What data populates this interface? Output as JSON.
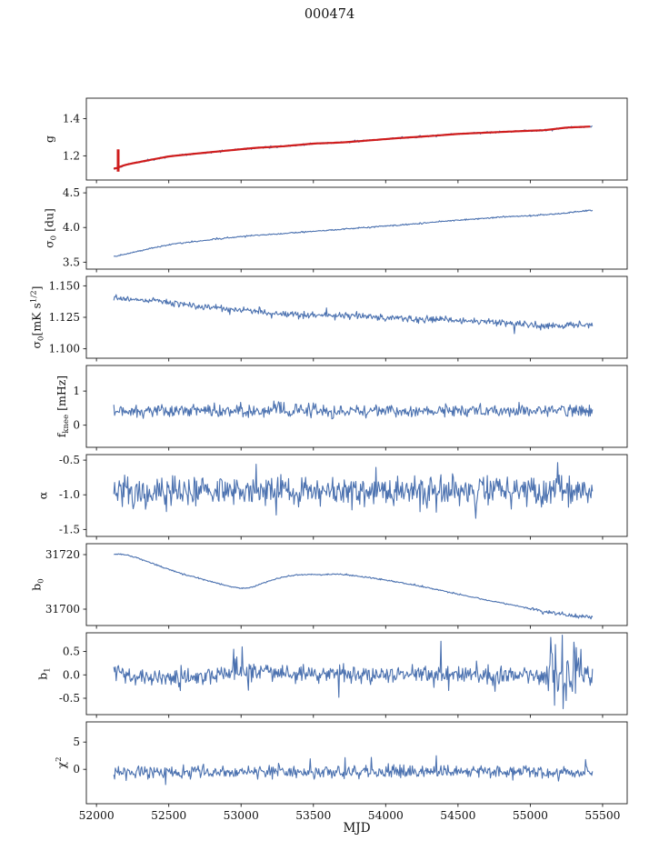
{
  "colors": {
    "line": "#4c72b0",
    "fit": "#cf1c1c",
    "axis": "#1a1a1a"
  },
  "chart_data": {
    "type": "line",
    "title": "000474",
    "xlabel": "MJD",
    "xlim": [
      51930,
      55670
    ],
    "xticks": [
      52000,
      52500,
      53000,
      53500,
      54000,
      54500,
      55000,
      55500
    ],
    "xtick_labels": [
      "52000",
      "52500",
      "53000",
      "53500",
      "54000",
      "54500",
      "55000",
      "55500"
    ],
    "x_data_range": [
      52120,
      55430
    ],
    "n_points": 620,
    "legend": "none",
    "grid": false,
    "panels": [
      {
        "id": "g",
        "ylabel": "g",
        "ylabel_parts": [
          [
            "g",
            "n"
          ]
        ],
        "ylim": [
          1.07,
          1.51
        ],
        "yticks": [
          1.2,
          1.4
        ],
        "ytick_labels": [
          "1.2",
          "1.4"
        ],
        "trend": [
          [
            52120,
            1.128
          ],
          [
            52200,
            1.152
          ],
          [
            52350,
            1.175
          ],
          [
            52500,
            1.197
          ],
          [
            52700,
            1.213
          ],
          [
            52900,
            1.228
          ],
          [
            53100,
            1.243
          ],
          [
            53300,
            1.252
          ],
          [
            53500,
            1.266
          ],
          [
            53700,
            1.272
          ],
          [
            53900,
            1.284
          ],
          [
            54100,
            1.296
          ],
          [
            54300,
            1.306
          ],
          [
            54500,
            1.318
          ],
          [
            54700,
            1.325
          ],
          [
            54900,
            1.332
          ],
          [
            55100,
            1.338
          ],
          [
            55250,
            1.352
          ],
          [
            55430,
            1.358
          ]
        ],
        "noise": 0.003,
        "seed": 11,
        "smooth": true,
        "fit": {
          "spike_x": 52150,
          "spike_y": [
            1.115,
            1.235
          ]
        }
      },
      {
        "id": "sigma0_du",
        "ylabel": "σ₀ [du]",
        "ylabel_parts": [
          [
            "σ",
            "n"
          ],
          [
            "0",
            "sub"
          ],
          [
            " [du]",
            "n"
          ]
        ],
        "ylim": [
          3.4,
          4.58
        ],
        "yticks": [
          3.5,
          4.0,
          4.5
        ],
        "ytick_labels": [
          "3.5",
          "4.0",
          "4.5"
        ],
        "trend": [
          [
            52120,
            3.58
          ],
          [
            52250,
            3.64
          ],
          [
            52400,
            3.71
          ],
          [
            52550,
            3.77
          ],
          [
            52700,
            3.8
          ],
          [
            52850,
            3.84
          ],
          [
            53000,
            3.87
          ],
          [
            53200,
            3.9
          ],
          [
            53400,
            3.93
          ],
          [
            53600,
            3.96
          ],
          [
            53800,
            3.99
          ],
          [
            54000,
            4.02
          ],
          [
            54200,
            4.05
          ],
          [
            54400,
            4.09
          ],
          [
            54600,
            4.12
          ],
          [
            54800,
            4.15
          ],
          [
            55000,
            4.17
          ],
          [
            55200,
            4.2
          ],
          [
            55430,
            4.25
          ]
        ],
        "noise": 0.006,
        "seed": 22,
        "smooth": true
      },
      {
        "id": "sigma0_mK",
        "ylabel": "σ₀[mK s^1/2]",
        "ylabel_parts": [
          [
            "σ",
            "n"
          ],
          [
            "0",
            "sub"
          ],
          [
            "[mK s",
            "n"
          ],
          [
            "1/2",
            "sup"
          ],
          [
            "]",
            "n"
          ]
        ],
        "ylim": [
          1.0925,
          1.1575
        ],
        "yticks": [
          1.1,
          1.125,
          1.15
        ],
        "ytick_labels": [
          "1.100",
          "1.125",
          "1.150"
        ],
        "trend": [
          [
            52120,
            1.14
          ],
          [
            52400,
            1.138
          ],
          [
            52700,
            1.134
          ],
          [
            53000,
            1.131
          ],
          [
            53200,
            1.128
          ],
          [
            53500,
            1.1265
          ],
          [
            53800,
            1.126
          ],
          [
            54100,
            1.124
          ],
          [
            54400,
            1.123
          ],
          [
            54700,
            1.1215
          ],
          [
            55000,
            1.119
          ],
          [
            55200,
            1.1185
          ],
          [
            55430,
            1.119
          ]
        ],
        "noise": 0.0016,
        "seed": 33,
        "spikes": [
          [
            54890,
            1.112
          ]
        ]
      },
      {
        "id": "f_knee",
        "ylabel": "f_knee [mHz]",
        "ylabel_parts": [
          [
            "f",
            "n"
          ],
          [
            "knee",
            "sub"
          ],
          [
            " [mHz]",
            "n"
          ]
        ],
        "ylim": [
          -0.65,
          1.75
        ],
        "yticks": [
          0,
          1
        ],
        "ytick_labels": [
          "0",
          "1"
        ],
        "trend": [
          [
            52120,
            0.42
          ],
          [
            55430,
            0.42
          ]
        ],
        "noise": 0.11,
        "seed": 44
      },
      {
        "id": "alpha",
        "ylabel": "α",
        "ylabel_parts": [
          [
            "α",
            "n"
          ]
        ],
        "ylim": [
          -1.6,
          -0.42
        ],
        "yticks": [
          -1.5,
          -1.0,
          -0.5
        ],
        "ytick_labels": [
          "-1.5",
          "-1.0",
          "-0.5"
        ],
        "trend": [
          [
            52120,
            -0.95
          ],
          [
            55430,
            -0.95
          ]
        ],
        "noise": 0.13,
        "seed": 55
      },
      {
        "id": "b0",
        "ylabel": "b₀",
        "ylabel_parts": [
          [
            "b",
            "n"
          ],
          [
            "0",
            "sub"
          ]
        ],
        "ylim": [
          31694,
          31724
        ],
        "yticks": [
          31700,
          31720
        ],
        "ytick_labels": [
          "31700",
          "31720"
        ],
        "trend": [
          [
            52120,
            31720.2
          ],
          [
            52200,
            31720.0
          ],
          [
            52300,
            31718.5
          ],
          [
            52450,
            31715.5
          ],
          [
            52600,
            31712.8
          ],
          [
            52750,
            31710.8
          ],
          [
            52900,
            31708.5
          ],
          [
            53000,
            31707.6
          ],
          [
            53060,
            31707.8
          ],
          [
            53150,
            31709.5
          ],
          [
            53250,
            31711.3
          ],
          [
            53350,
            31712.3
          ],
          [
            53450,
            31712.8
          ],
          [
            53550,
            31712.6
          ],
          [
            53650,
            31712.9
          ],
          [
            53750,
            31712.5
          ],
          [
            53900,
            31711.5
          ],
          [
            54100,
            31709.8
          ],
          [
            54300,
            31707.8
          ],
          [
            54500,
            31705.5
          ],
          [
            54700,
            31703.3
          ],
          [
            54900,
            31701.3
          ],
          [
            55000,
            31700.2
          ],
          [
            55100,
            31699.0
          ],
          [
            55200,
            31698.3
          ],
          [
            55300,
            31697.6
          ],
          [
            55430,
            31697.0
          ]
        ],
        "noise": 0.15,
        "seed": 66,
        "smooth": true,
        "noise_zones": [
          [
            55000,
            55430,
            3.0
          ]
        ]
      },
      {
        "id": "b1",
        "ylabel": "b₁",
        "ylabel_parts": [
          [
            "b",
            "n"
          ],
          [
            "1",
            "sub"
          ]
        ],
        "ylim": [
          -0.85,
          0.9
        ],
        "yticks": [
          -0.5,
          0.0,
          0.5
        ],
        "ytick_labels": [
          "-0.5",
          "0.0",
          "0.5"
        ],
        "trend": [
          [
            52120,
            0.05
          ],
          [
            52300,
            -0.05
          ],
          [
            52500,
            -0.08
          ],
          [
            52700,
            -0.04
          ],
          [
            52900,
            0.05
          ],
          [
            53100,
            0.06
          ],
          [
            53400,
            0.03
          ],
          [
            53800,
            0.0
          ],
          [
            54300,
            0.0
          ],
          [
            54800,
            0.0
          ],
          [
            55430,
            0.0
          ]
        ],
        "noise": 0.12,
        "seed": 77,
        "spikes": [
          [
            52950,
            0.55
          ],
          [
            53010,
            0.6
          ],
          [
            54380,
            0.72
          ],
          [
            55140,
            0.8
          ],
          [
            55170,
            -0.65
          ],
          [
            55220,
            0.85
          ],
          [
            55250,
            -0.55
          ],
          [
            55300,
            0.7
          ]
        ],
        "noise_zones": [
          [
            55100,
            55350,
            2.6
          ]
        ]
      },
      {
        "id": "chi2",
        "ylabel": "χ²",
        "ylabel_parts": [
          [
            "χ",
            "n"
          ],
          [
            "2",
            "sup"
          ]
        ],
        "ylim": [
          -6.3,
          8.7
        ],
        "yticks": [
          0,
          5
        ],
        "ytick_labels": [
          "0",
          "5"
        ],
        "trend": [
          [
            52120,
            -0.5
          ],
          [
            55430,
            -0.5
          ]
        ],
        "noise": 0.7,
        "seed": 88,
        "spikes": [
          [
            52480,
            -2.8
          ],
          [
            53900,
            2.2
          ],
          [
            54350,
            2.5
          ],
          [
            55380,
            1.8
          ]
        ]
      }
    ]
  }
}
